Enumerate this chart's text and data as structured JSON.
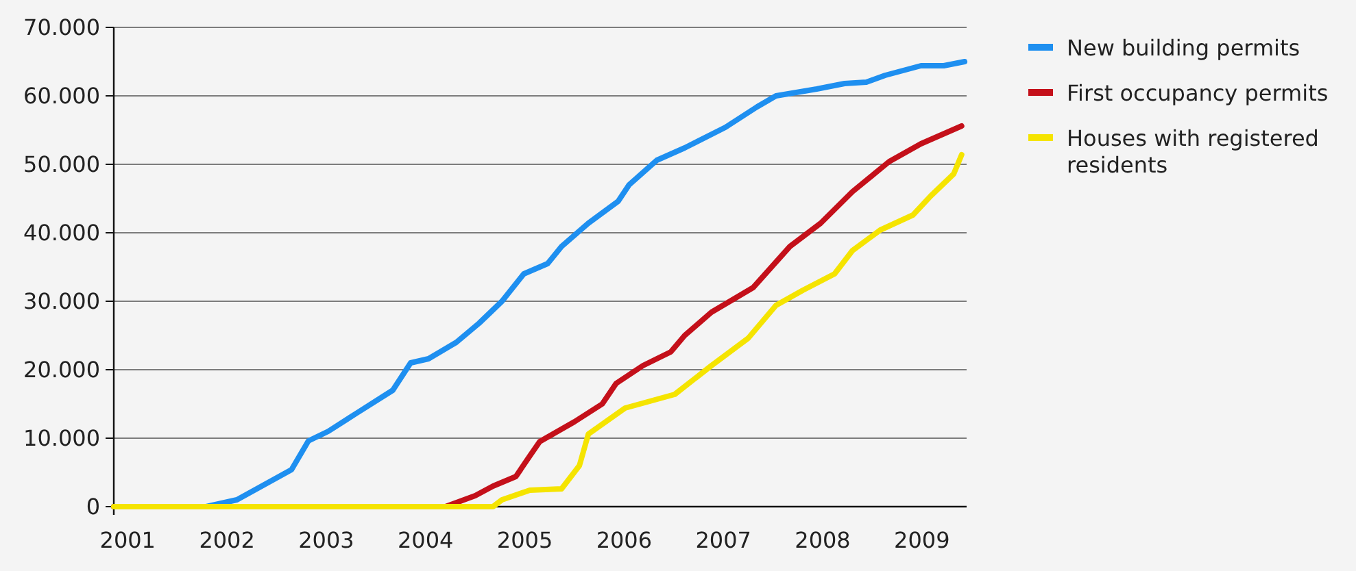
{
  "chart_data": {
    "type": "line",
    "xlim": [
      2000.86,
      2009.45
    ],
    "xticks": [
      2001,
      2002,
      2003,
      2004,
      2005,
      2006,
      2007,
      2008,
      2009
    ],
    "ylim": [
      0,
      70000
    ],
    "yticks": [
      0,
      {
        "value": 10000,
        "label": "10.000"
      },
      {
        "value": 20000,
        "label": "20.000"
      },
      {
        "value": 30000,
        "label": "30.000"
      },
      {
        "value": 40000,
        "label": "40.000"
      },
      {
        "value": 50000,
        "label": "50.000"
      },
      {
        "value": 60000,
        "label": "60.000"
      },
      {
        "value": 70000,
        "label": "70.000"
      }
    ],
    "grid": "y",
    "legend": "top right",
    "marker": "none",
    "line_style": "solid",
    "series": [
      {
        "name": "New building permits",
        "color": "#1e8ff0",
        "x": [
          2000.86,
          2001.79,
          2002.1,
          2002.65,
          2002.82,
          2003.02,
          2003.3,
          2003.67,
          2003.85,
          2004.03,
          2004.31,
          2004.54,
          2004.77,
          2004.99,
          2005.23,
          2005.37,
          2005.64,
          2005.94,
          2006.05,
          2006.33,
          2006.61,
          2007.02,
          2007.34,
          2007.53,
          2007.94,
          2008.22,
          2008.44,
          2008.63,
          2008.99,
          2009.22,
          2009.43
        ],
        "values": [
          0,
          0,
          1000,
          5400,
          9600,
          11000,
          13600,
          17000,
          21000,
          21600,
          24000,
          26800,
          30000,
          34000,
          35500,
          38000,
          41400,
          44600,
          47000,
          50600,
          52400,
          55400,
          58400,
          60000,
          61000,
          61800,
          62000,
          63000,
          64400,
          64400,
          65000
        ]
      },
      {
        "name": "First occupancy permits",
        "color": "#c4101a",
        "x": [
          2000.86,
          2004.2,
          2004.5,
          2004.68,
          2004.91,
          2005.05,
          2005.15,
          2005.5,
          2005.78,
          2005.92,
          2006.19,
          2006.47,
          2006.61,
          2006.88,
          2007.3,
          2007.67,
          2007.98,
          2008.3,
          2008.67,
          2008.99,
          2009.4
        ],
        "values": [
          0,
          0,
          1600,
          3000,
          4400,
          7400,
          9500,
          12400,
          15000,
          18000,
          20600,
          22600,
          25000,
          28400,
          32000,
          38000,
          41400,
          46000,
          50400,
          53000,
          55600
        ]
      },
      {
        "name": "Houses with registered residents",
        "color": "#f5e400",
        "x": [
          2000.86,
          2004.68,
          2004.77,
          2005.05,
          2005.37,
          2005.55,
          2005.64,
          2006.01,
          2006.51,
          2006.88,
          2007.25,
          2007.53,
          2007.8,
          2008.12,
          2008.3,
          2008.58,
          2008.91,
          2009.09,
          2009.32,
          2009.4
        ],
        "values": [
          0,
          0,
          1000,
          2400,
          2600,
          6000,
          10600,
          14400,
          16400,
          20600,
          24600,
          29400,
          31600,
          34000,
          37400,
          40400,
          42600,
          45400,
          48600,
          51400
        ]
      }
    ]
  }
}
